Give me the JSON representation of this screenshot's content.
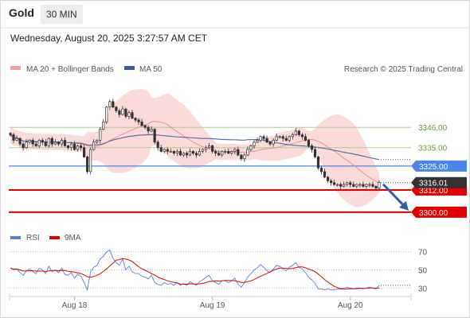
{
  "header": {
    "symbol": "Gold",
    "timeframe": "30 MIN",
    "timestamp": "Wednesday, August 20, 2025 3:27:57 AM CET"
  },
  "legend": {
    "bb_label": "MA 20 + Bollinger Bands",
    "ma50_label": "MA 50",
    "copyright": "Research © 2025 Trading Central"
  },
  "rsi_legend": {
    "rsi_label": "RSI",
    "ma_label": "9MA"
  },
  "colors": {
    "bb_band": "#f7b0ae",
    "bb_line": "#e88a8a",
    "ma50": "#5a6fa8",
    "candle": "#333333",
    "resistance": "#a8d08d",
    "pivot": "#4a86e8",
    "support": "#e00000",
    "rsi": "#5b7fd6",
    "rsi_ma": "#e00000",
    "arrow": "#2e5fa8"
  },
  "chart_data": [
    {
      "type": "candlestick",
      "title": "Gold",
      "timeframe": "30 MIN",
      "ylim": [
        3290,
        3372
      ],
      "x_ticks": [
        "Aug 18",
        "Aug 19",
        "Aug 20"
      ],
      "x_tick_index": [
        20,
        63,
        106
      ],
      "n_candles": 116,
      "last_price": 3316.01,
      "close_series": [
        3342,
        3339,
        3340,
        3337,
        3335,
        3338,
        3339,
        3337,
        3336,
        3339,
        3338,
        3336,
        3340,
        3337,
        3338,
        3337,
        3339,
        3336,
        3335,
        3337,
        3334,
        3336,
        3335,
        3330,
        3322,
        3334,
        3338,
        3339,
        3345,
        3349,
        3357,
        3360,
        3357,
        3355,
        3353,
        3356,
        3352,
        3354,
        3351,
        3350,
        3349,
        3347,
        3346,
        3344,
        3345,
        3338,
        3335,
        3333,
        3334,
        3333,
        3333,
        3332,
        3333,
        3331,
        3332,
        3331,
        3333,
        3332,
        3331,
        3333,
        3334,
        3335,
        3336,
        3333,
        3332,
        3331,
        3333,
        3333,
        3332,
        3333,
        3334,
        3331,
        3329,
        3331,
        3334,
        3336,
        3338,
        3339,
        3341,
        3340,
        3338,
        3337,
        3339,
        3341,
        3341,
        3340,
        3339,
        3341,
        3342,
        3344,
        3342,
        3341,
        3339,
        3336,
        3334,
        3330,
        3324,
        3322,
        3319,
        3317,
        3316,
        3315,
        3315,
        3314,
        3315,
        3316,
        3315,
        3314,
        3315,
        3315,
        3314,
        3315,
        3315,
        3314,
        3313,
        3316.01
      ],
      "series": [
        {
          "name": "MA 20 + Bollinger Bands",
          "type": "band"
        },
        {
          "name": "MA 50",
          "type": "line"
        }
      ],
      "levels": [
        {
          "label": "3346.00",
          "value": 3346.0,
          "kind": "resistance"
        },
        {
          "label": "3335.00",
          "value": 3335.0,
          "kind": "resistance"
        },
        {
          "label": "3325.00",
          "value": 3325.0,
          "kind": "pivot"
        },
        {
          "label": "3312.00",
          "value": 3312.0,
          "kind": "support"
        },
        {
          "label": "3300.00",
          "value": 3300.0,
          "kind": "support"
        }
      ],
      "current_price_label": "3316.01",
      "projection": {
        "from": 3316.01,
        "to": 3300.0,
        "direction": "down"
      }
    },
    {
      "type": "line",
      "title": "RSI",
      "ylim": [
        25,
        75
      ],
      "y_ticks": [
        30,
        50,
        70
      ],
      "series": [
        {
          "name": "RSI",
          "values": [
            52,
            50,
            51,
            47,
            44,
            49,
            51,
            48,
            46,
            52,
            50,
            46,
            54,
            48,
            50,
            47,
            52,
            45,
            44,
            47,
            41,
            45,
            43,
            36,
            28,
            48,
            53,
            55,
            62,
            65,
            70,
            72,
            63,
            58,
            55,
            62,
            50,
            54,
            48,
            46,
            46,
            43,
            42,
            40,
            44,
            36,
            34,
            33,
            36,
            34,
            35,
            33,
            36,
            33,
            35,
            33,
            37,
            35,
            33,
            37,
            39,
            42,
            44,
            38,
            36,
            34,
            38,
            38,
            36,
            38,
            41,
            34,
            31,
            36,
            42,
            46,
            50,
            52,
            56,
            53,
            49,
            47,
            51,
            55,
            54,
            51,
            49,
            53,
            55,
            58,
            53,
            51,
            47,
            42,
            39,
            35,
            29,
            29,
            28,
            29,
            28,
            28,
            29,
            29,
            30,
            31,
            30,
            29,
            30,
            30,
            29,
            30,
            31,
            30,
            29,
            33
          ]
        },
        {
          "name": "9MA"
        }
      ]
    }
  ]
}
